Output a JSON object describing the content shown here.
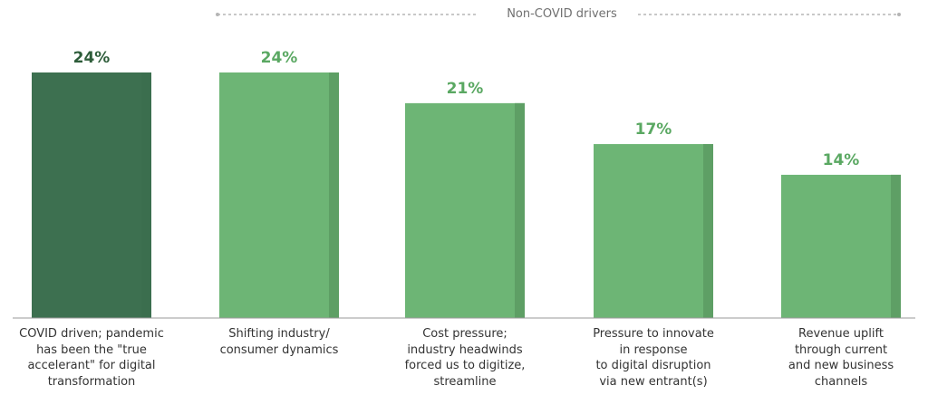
{
  "group_label": "Non-COVID drivers",
  "colors": {
    "covid": "#3d7050",
    "covid_shade": "#3b6e4e",
    "noncovid": "#6db575",
    "noncovid_shade": "#5e9f65",
    "covid_value": "#2e5d3a",
    "noncovid_value": "#5aa862",
    "axis": "#9a9a9a",
    "dashed": "#b5b5b5"
  },
  "chart_data": {
    "type": "bar",
    "title": "",
    "categories": [
      "COVID driven; pandemic\nhas been the \"true\naccelerant\" for  digital\ntransformation",
      "Shifting industry/\nconsumer dynamics",
      "Cost pressure;\nindustry headwinds\nforced us to digitize,\nstreamline",
      "Pressure to innovate\nin response\nto digital disruption\nvia new entrant(s)",
      "Revenue uplift\nthrough current\nand new business\nchannels"
    ],
    "values": [
      24,
      24,
      21,
      17,
      14
    ],
    "value_labels": [
      "24%",
      "24%",
      "21%",
      "17%",
      "14%"
    ],
    "value_unit": "%",
    "ylim": [
      0,
      24
    ],
    "group": {
      "label": "Non-COVID drivers",
      "categories": [
        1,
        2,
        3,
        4
      ]
    },
    "grid": false,
    "xlabel": "",
    "ylabel": ""
  }
}
